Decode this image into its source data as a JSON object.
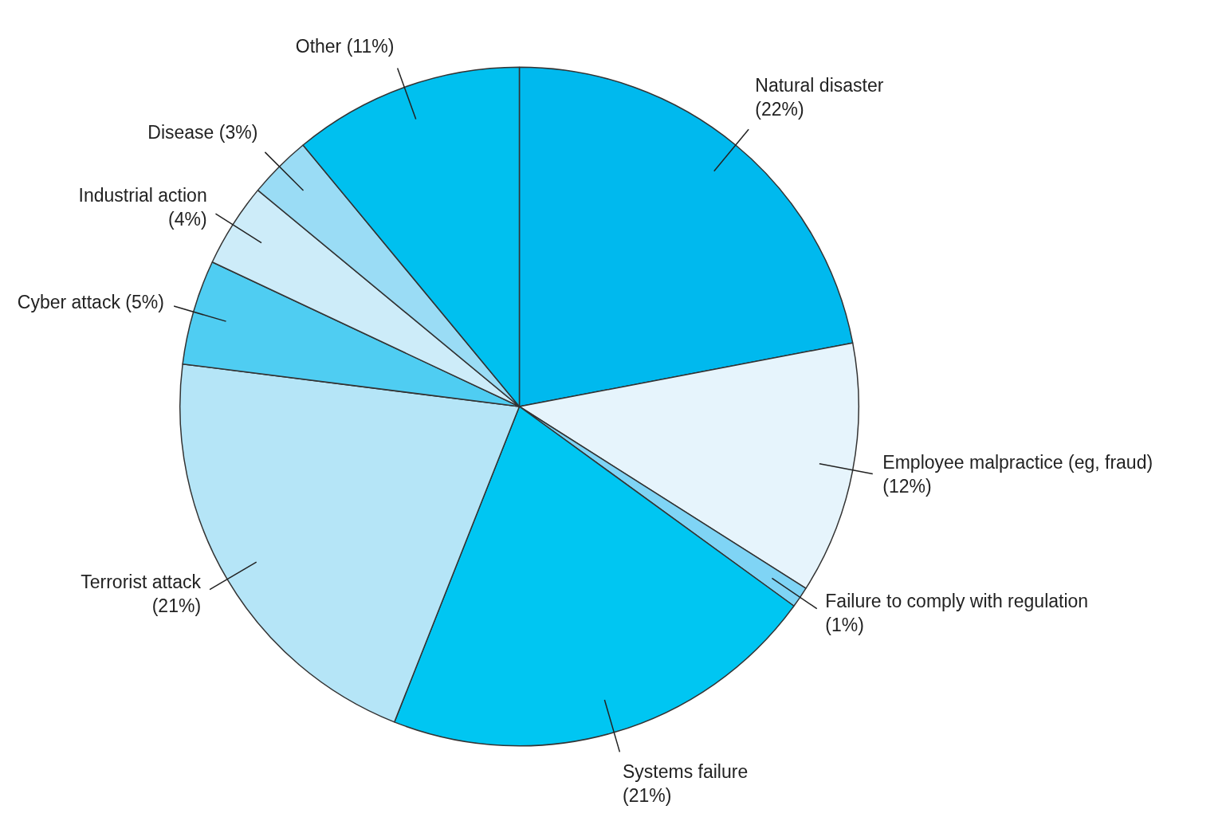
{
  "chart_data": {
    "type": "pie",
    "categories": [
      "Natural disaster",
      "Employee malpractice (eg, fraud)",
      "Failure to comply with regulation",
      "Systems failure",
      "Terrorist attack",
      "Cyber attack",
      "Industrial action",
      "Disease",
      "Other"
    ],
    "values": [
      22,
      12,
      1,
      21,
      21,
      5,
      4,
      3,
      11
    ],
    "value_labels": [
      "(22%)",
      "(12%)",
      "(1%)",
      "(21%)",
      "(21%)",
      "(5%)",
      "(4%)",
      "(3%)",
      "(11%)"
    ],
    "colors": [
      "#00b9ee",
      "#e6f4fc",
      "#7fd4f5",
      "#00c6f2",
      "#b5e5f7",
      "#4fcdf2",
      "#cdecf9",
      "#9adcf5",
      "#00c0ef"
    ],
    "legend": false
  }
}
